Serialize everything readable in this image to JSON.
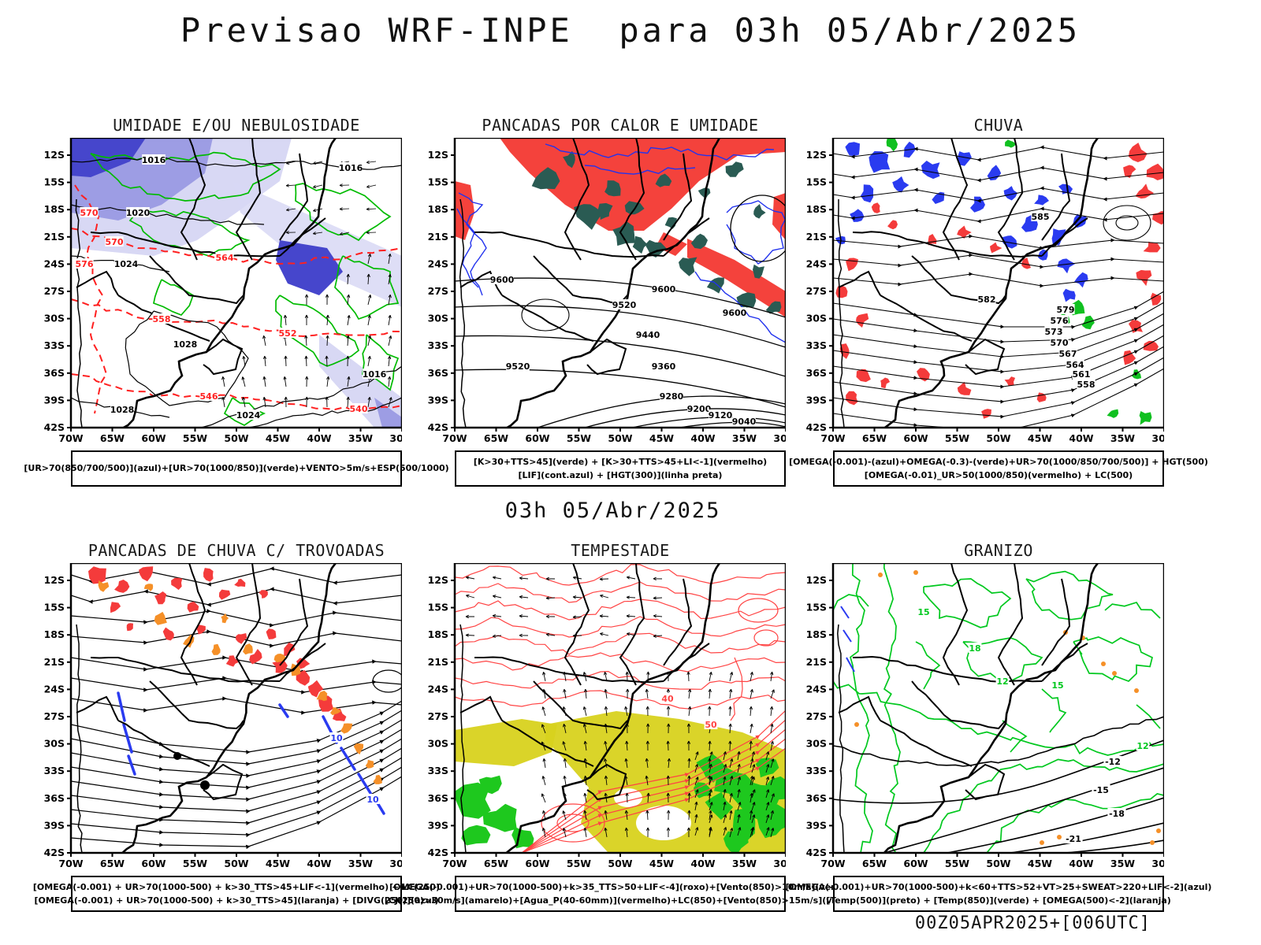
{
  "title": "Previsao WRF-INPE  para 03h 05/Abr/2025",
  "mid_label": "03h 05/Abr/2025",
  "footer_label": "00Z05APR2025+[006UTC]",
  "axes": {
    "lat_labels": [
      "12S",
      "15S",
      "18S",
      "21S",
      "24S",
      "27S",
      "30S",
      "33S",
      "36S",
      "39S",
      "42S"
    ],
    "lon_labels": [
      "70W",
      "65W",
      "60W",
      "55W",
      "50W",
      "45W",
      "40W",
      "35W",
      "30W"
    ]
  },
  "panels": [
    {
      "id": "umidade",
      "title": "UMIDADE E/OU NEBULOSIDADE",
      "caption": [
        "[UR>70(850/700/500)](azul)+[UR>70(1000/850)](verde)+VENTO>5m/s+ESP(500/1000)"
      ],
      "contour_labels": {
        "black": [
          "1016",
          "1020",
          "1024",
          "1028"
        ],
        "red": [
          "540",
          "546",
          "552",
          "558",
          "564",
          "570",
          "576"
        ]
      },
      "colors": {
        "azul_escuro": "#4646cc",
        "azul_medio": "#9d9de4",
        "azul_claro": "#d8d8f4",
        "verde": "#00bb00",
        "vermelho": "#ff2020",
        "preto": "#000000"
      }
    },
    {
      "id": "pancadas-calor",
      "title": "PANCADAS POR CALOR E UMIDADE",
      "caption": [
        "[K>30+TTS>45](verde) + [K>30+TTS>45+LI<-1](vermelho)",
        "[LIF](cont.azul) + [HGT(300)](linha preta)"
      ],
      "contour_labels": {
        "black": [
          "9600",
          "9520",
          "9440",
          "9360",
          "9280",
          "9200",
          "9120",
          "9040"
        ]
      },
      "colors": {
        "vermelho": "#f4423c",
        "verde_escuro": "#2a5b53",
        "azul": "#2233ee",
        "preto": "#000000"
      }
    },
    {
      "id": "chuva",
      "title": "CHUVA",
      "caption": [
        "[OMEGA(-0.001)-(azul)+OMEGA(-0.3)-(verde)+UR>70(1000/850/700/500)] + HGT(500)",
        "[OMEGA(-0.01)_UR>50(1000/850)(vermelho) + LC(500)"
      ],
      "contour_labels": {
        "black": [
          "585",
          "582",
          "579",
          "576",
          "573",
          "570",
          "567",
          "564",
          "561",
          "558"
        ]
      },
      "colors": {
        "azul": "#2a3bf0",
        "vermelho": "#f43b3b",
        "verde": "#10c020",
        "preto": "#000000"
      }
    },
    {
      "id": "trovoadas",
      "title": "PANCADAS DE CHUVA C/ TROVOADAS",
      "caption": [
        "[OMEGA(-0.001) + UR>70(1000-500) + k>30_TTS>45+LIF<-1](vermelho) + LC(250)",
        "[OMEGA(-0.001) + UR>70(1000-500) + k>30_TTS>45](laranja) + [DIVG(250)](azul)"
      ],
      "contour_labels": {
        "blue": [
          "10"
        ]
      },
      "colors": {
        "vermelho": "#f43b3b",
        "laranja": "#f59028",
        "azul": "#2a3bf0",
        "preto": "#000000"
      }
    },
    {
      "id": "tempestade",
      "title": "TEMPESTADE",
      "caption": [
        "[OMEGA(-0.001)+UR>70(1000-500)+k>35_TTS>50+LIF<-4](roxo)+[Vento(850)>10m/s](verde)",
        "[CJ(250)>30m/s](amarelo)+[Agua_P(40-60mm)](vermelho)+LC(850)+[Vento(850)>15m/s](vetor)"
      ],
      "contour_labels": {
        "red": [
          "40",
          "50"
        ]
      },
      "colors": {
        "amarelo": "#d8d21e",
        "verde": "#1ec81e",
        "vermelho": "#ff4444",
        "roxo": "#8800cc",
        "preto": "#000000"
      }
    },
    {
      "id": "granizo",
      "title": "GRANIZO",
      "caption": [
        "[OMEGA(-0.001)+UR>70(1000-500)+k<60+TTS>52+VT>25+SWEAT>220+LIF<-2](azul)",
        "[Temp(500)](preto) + [Temp(850)](verde) + [OMEGA(500)<-2](laranja)"
      ],
      "contour_labels": {
        "green": [
          "12",
          "15",
          "18"
        ],
        "black": [
          "-12",
          "-15",
          "-18",
          "-21"
        ]
      },
      "colors": {
        "verde": "#00c81e",
        "preto": "#000000",
        "laranja": "#f59028",
        "azul": "#2a3bf0"
      }
    }
  ]
}
